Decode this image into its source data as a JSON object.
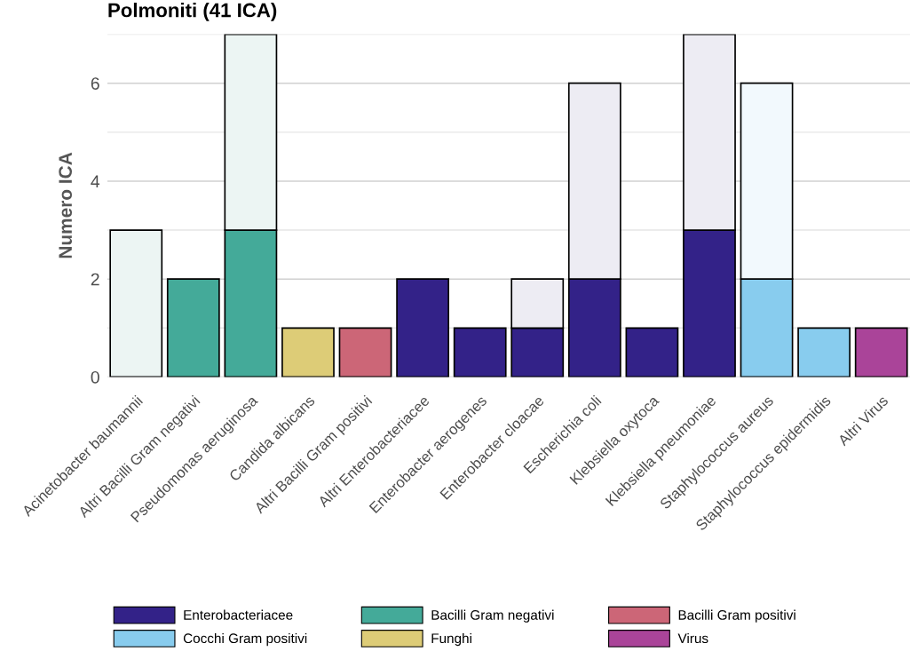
{
  "chart_data": {
    "type": "bar",
    "title": "Polmoniti (41 ICA)",
    "ylabel": "Numero ICA",
    "stacked": true,
    "categories": [
      "Acinetobacter baumannii",
      "Altri Bacilli Gram negativi",
      "Pseudomonas aeruginosa",
      "Candida albicans",
      "Altri Bacilli Gram positivi",
      "Altri Enterobacteriacee",
      "Enterobacter aerogenes",
      "Enterobacter cloacae",
      "Escherichia coli",
      "Klebsiella oxytoca",
      "Klebsiella pneumoniae",
      "Staphylococcus aureus",
      "Staphylococcus epidermidis",
      "Altri Virus"
    ],
    "series": [
      {
        "name": "Enterobacteriacee",
        "color": "#332288",
        "values": [
          null,
          null,
          null,
          null,
          null,
          2,
          1,
          1,
          2,
          1,
          3,
          null,
          null,
          null
        ]
      },
      {
        "name": "Bacilli Gram negativi",
        "color": "#44aa99",
        "values": [
          null,
          2,
          3,
          null,
          null,
          null,
          null,
          null,
          null,
          null,
          null,
          null,
          null,
          null
        ]
      },
      {
        "name": "Bacilli Gram positivi",
        "color": "#cc6677",
        "values": [
          null,
          null,
          null,
          null,
          1,
          null,
          null,
          null,
          null,
          null,
          null,
          null,
          null,
          null
        ]
      },
      {
        "name": "Cocchi Gram positivi",
        "color": "#88ccee",
        "values": [
          null,
          null,
          null,
          null,
          null,
          null,
          null,
          null,
          null,
          null,
          null,
          2,
          1,
          null
        ]
      },
      {
        "name": "Funghi",
        "color": "#ddcc77",
        "values": [
          null,
          null,
          null,
          1,
          null,
          null,
          null,
          null,
          null,
          null,
          null,
          null,
          null,
          null
        ]
      },
      {
        "name": "Virus",
        "color": "#aa4499",
        "values": [
          null,
          null,
          null,
          null,
          null,
          null,
          null,
          null,
          null,
          null,
          null,
          null,
          null,
          1
        ]
      },
      {
        "color": "#edecf3",
        "values": [
          null,
          null,
          null,
          null,
          null,
          null,
          null,
          1,
          4,
          null,
          4,
          null,
          null,
          null
        ]
      },
      {
        "color": "#ecf5f3",
        "values": [
          3,
          null,
          4,
          null,
          null,
          null,
          null,
          null,
          null,
          null,
          null,
          null,
          null,
          null
        ]
      },
      {
        "color": "#f2f9fd",
        "values": [
          null,
          null,
          null,
          null,
          null,
          null,
          null,
          null,
          null,
          null,
          null,
          4,
          null,
          null
        ]
      }
    ],
    "ylim": [
      0,
      7
    ],
    "yticks": [
      0,
      {
        "value": 1,
        "label": null
      },
      2,
      {
        "value": 3,
        "label": null
      },
      4,
      {
        "value": 5,
        "label": null
      },
      6,
      {
        "value": 7,
        "label": null
      }
    ],
    "grid": "y",
    "legend": "bottom"
  }
}
